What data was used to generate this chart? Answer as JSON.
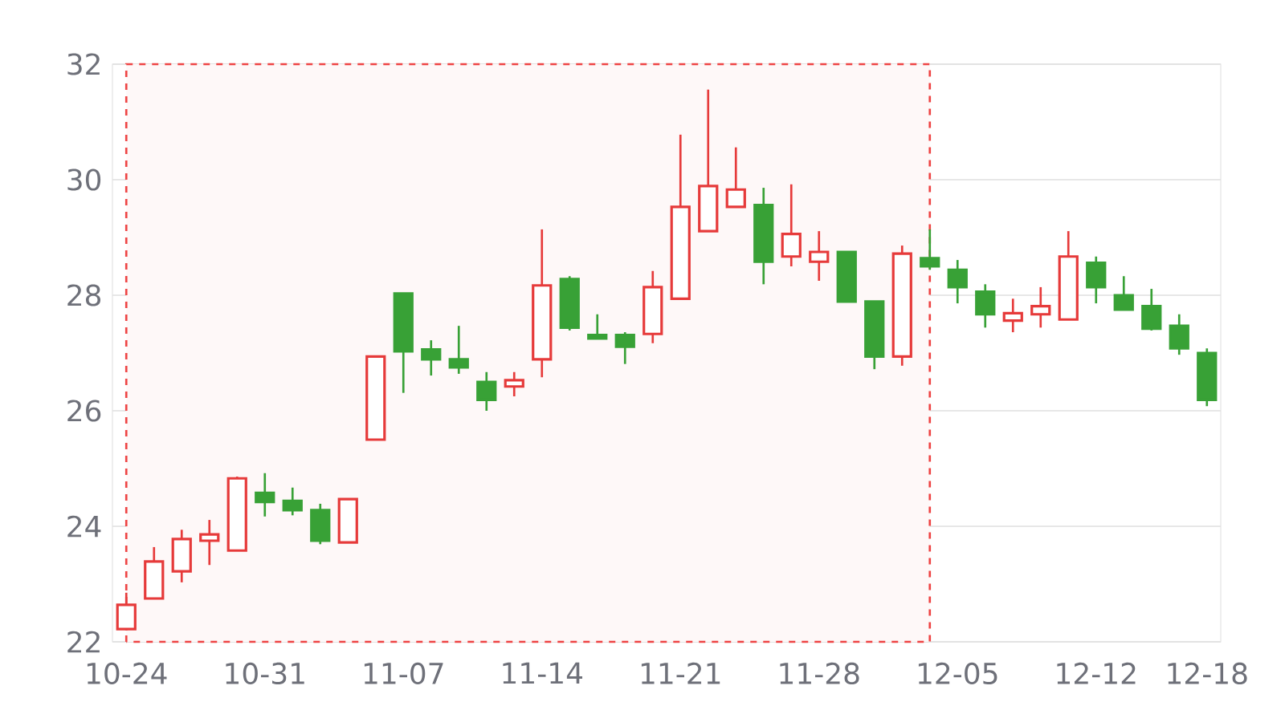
{
  "chart_data": {
    "type": "candlestick",
    "categories": [
      "10-24",
      null,
      null,
      null,
      null,
      "10-31",
      null,
      null,
      null,
      null,
      "11-07",
      null,
      null,
      null,
      null,
      "11-14",
      null,
      null,
      null,
      null,
      "11-21",
      null,
      null,
      null,
      null,
      "11-28",
      null,
      null,
      null,
      null,
      "12-05",
      null,
      null,
      null,
      null,
      "12-12",
      null,
      null,
      null,
      "12-18"
    ],
    "ohlc": [
      [
        22.22,
        22.85,
        22.2,
        22.64
      ],
      [
        22.75,
        23.64,
        22.75,
        23.39
      ],
      [
        23.22,
        23.94,
        23.03,
        23.78
      ],
      [
        23.75,
        24.11,
        23.33,
        23.86
      ],
      [
        23.58,
        24.86,
        23.58,
        24.83
      ],
      [
        24.58,
        24.92,
        24.17,
        24.42
      ],
      [
        24.44,
        24.67,
        24.19,
        24.28
      ],
      [
        24.28,
        24.39,
        23.69,
        23.75
      ],
      [
        23.72,
        24.47,
        23.72,
        24.47
      ],
      [
        25.5,
        26.94,
        25.5,
        26.94
      ],
      [
        28.03,
        28.03,
        26.31,
        27.03
      ],
      [
        27.06,
        27.22,
        26.61,
        26.89
      ],
      [
        26.89,
        27.47,
        26.64,
        26.75
      ],
      [
        26.5,
        26.67,
        26.0,
        26.19
      ],
      [
        26.42,
        26.67,
        26.25,
        26.53
      ],
      [
        26.89,
        29.14,
        26.58,
        28.17
      ],
      [
        28.28,
        28.33,
        27.39,
        27.44
      ],
      [
        27.31,
        27.67,
        27.25,
        27.25
      ],
      [
        27.31,
        27.36,
        26.81,
        27.11
      ],
      [
        27.33,
        28.42,
        27.17,
        28.14
      ],
      [
        27.94,
        30.78,
        27.92,
        29.53
      ],
      [
        29.11,
        31.56,
        29.11,
        29.89
      ],
      [
        29.53,
        30.56,
        29.53,
        29.83
      ],
      [
        29.56,
        29.86,
        28.19,
        28.58
      ],
      [
        28.67,
        29.92,
        28.5,
        29.06
      ],
      [
        28.58,
        29.11,
        28.25,
        28.75
      ],
      [
        28.75,
        28.75,
        27.89,
        27.89
      ],
      [
        27.89,
        27.89,
        26.72,
        26.94
      ],
      [
        26.94,
        28.86,
        26.78,
        28.72
      ],
      [
        28.64,
        29.14,
        28.44,
        28.5
      ],
      [
        28.44,
        28.61,
        27.86,
        28.14
      ],
      [
        28.06,
        28.19,
        27.44,
        27.67
      ],
      [
        27.56,
        27.94,
        27.36,
        27.69
      ],
      [
        27.67,
        28.14,
        27.44,
        27.81
      ],
      [
        27.58,
        29.11,
        27.58,
        28.67
      ],
      [
        28.56,
        28.67,
        27.86,
        28.14
      ],
      [
        28.0,
        28.33,
        27.75,
        27.75
      ],
      [
        27.81,
        28.11,
        27.39,
        27.42
      ],
      [
        27.47,
        27.67,
        26.97,
        27.08
      ],
      [
        27.0,
        27.08,
        26.08,
        26.19
      ]
    ],
    "colors": [
      "#e63a3a",
      "#e63a3a",
      "#e63a3a",
      "#e63a3a",
      "#e63a3a",
      "#38a136",
      "#38a136",
      "#38a136",
      "#e63a3a",
      "#e63a3a",
      "#38a136",
      "#38a136",
      "#38a136",
      "#38a136",
      "#e63a3a",
      "#e63a3a",
      "#38a136",
      "#38a136",
      "#38a136",
      "#e63a3a",
      "#e63a3a",
      "#e63a3a",
      "#e63a3a",
      "#38a136",
      "#e63a3a",
      "#e63a3a",
      "#38a136",
      "#38a136",
      "#e63a3a",
      "#38a136",
      "#38a136",
      "#38a136",
      "#e63a3a",
      "#e63a3a",
      "#e63a3a",
      "#38a136",
      "#38a136",
      "#38a136",
      "#38a136",
      "#38a136"
    ],
    "ylim": [
      22,
      32
    ],
    "yticks": [
      22,
      24,
      26,
      28,
      30,
      32
    ],
    "grid": "y"
  }
}
